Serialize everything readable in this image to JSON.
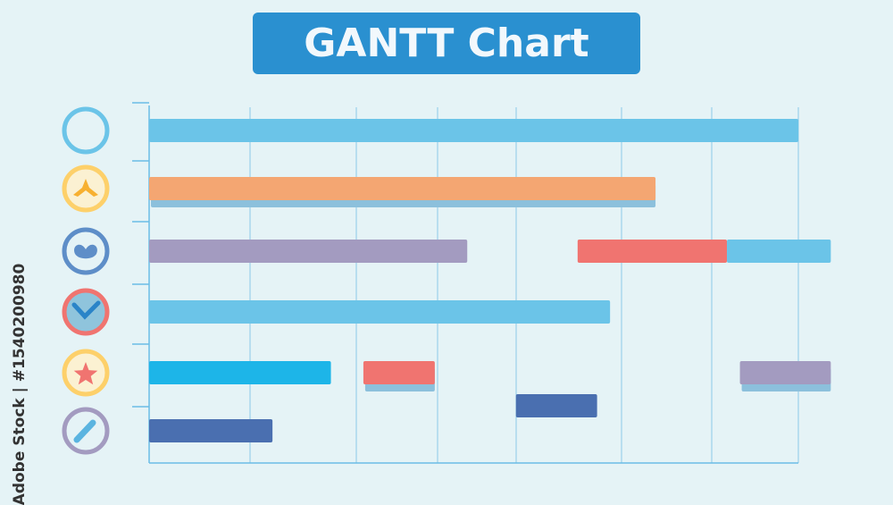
{
  "chart_data": {
    "type": "gantt",
    "title": "GANTT Chart",
    "xlim": [
      0,
      105
    ],
    "grid": true,
    "rows": [
      {
        "icon": "ring-icon",
        "ring_color": "#6bc4e8",
        "inner_color": "#e5f3f6",
        "bars": [
          {
            "start": 0,
            "end": 100,
            "color": "#6bc4e8"
          }
        ]
      },
      {
        "icon": "tri-arrow-icon",
        "ring_color": "#fdd06a",
        "inner_color": "#fbf1d2",
        "glyph_color": "#f7b030",
        "bars": [
          {
            "start": 0,
            "end": 78,
            "color": "#f4a672"
          }
        ]
      },
      {
        "icon": "heart-icon",
        "ring_color": "#5e8ec8",
        "inner_color": "#e5f3f6",
        "glyph_color": "#5e8ec8",
        "bars": [
          {
            "start": 0,
            "end": 49,
            "color": "#a39bc0"
          },
          {
            "start": 66,
            "end": 89,
            "color": "#f07470"
          },
          {
            "start": 89,
            "end": 105,
            "color": "#6bc4e8"
          }
        ]
      },
      {
        "icon": "check-icon",
        "ring_color": "#f07470",
        "inner_color": "#8fc4dc",
        "glyph_color": "#2a84c8",
        "bars": [
          {
            "start": 0,
            "end": 71,
            "color": "#6bc4e8"
          }
        ]
      },
      {
        "icon": "star-icon",
        "ring_color": "#fdd06a",
        "inner_color": "#fbf1d2",
        "glyph_color": "#f07470",
        "bars": [
          {
            "start": 0,
            "end": 28,
            "color": "#1db5e8"
          },
          {
            "start": 33,
            "end": 44,
            "color": "#f07470"
          },
          {
            "start": 91,
            "end": 105,
            "color": "#a39bc0"
          }
        ]
      },
      {
        "icon": "pencil-icon",
        "ring_color": "#a39bc0",
        "inner_color": "#e5f3f6",
        "glyph_color": "#5ab4e0",
        "bars": [
          {
            "start": 0,
            "end": 19,
            "color": "#4a6fb0"
          },
          {
            "start": 56.5,
            "end": 69,
            "color": "#4a6fb0",
            "offset": "up"
          }
        ]
      }
    ]
  },
  "watermark": "Adobe Stock | #1540200980"
}
